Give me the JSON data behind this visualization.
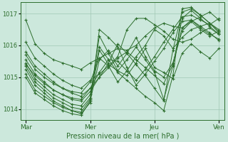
{
  "xlabel": "Pression niveau de la mer( hPa )",
  "bg_color": "#cce8dc",
  "grid_color": "#a0c8b4",
  "line_color": "#2d6e2d",
  "marker": "+",
  "xtick_labels": [
    "Mar",
    "Mer",
    "Jeu",
    "Ven"
  ],
  "xtick_positions": [
    0,
    48,
    96,
    144
  ],
  "yticks": [
    1014,
    1015,
    1016,
    1017
  ],
  "ylim": [
    1013.65,
    1017.35
  ],
  "xlim": [
    -4,
    148
  ],
  "series": [
    [
      1016.8,
      1016.05,
      1015.75,
      1015.55,
      1015.45,
      1015.35,
      1015.25,
      1015.45,
      1015.6,
      1015.75,
      1015.9,
      1015.85,
      1016.0,
      1016.3,
      1016.55,
      1016.7,
      1016.6,
      1016.55,
      1016.75,
      1016.9,
      1017.05,
      1016.8
    ],
    [
      1016.1,
      1015.6,
      1015.35,
      1015.1,
      1014.9,
      1014.75,
      1014.65,
      1014.9,
      1015.1,
      1015.35,
      1015.65,
      1016.5,
      1016.85,
      1016.85,
      1016.65,
      1016.45,
      1016.2,
      1016.1,
      1016.2,
      1016.4,
      1016.55,
      1016.35
    ],
    [
      1015.8,
      1015.35,
      1015.1,
      1014.85,
      1014.65,
      1014.5,
      1014.4,
      1014.65,
      1015.0,
      1015.3,
      1015.6,
      1015.8,
      1015.55,
      1015.3,
      1015.05,
      1014.8,
      1015.4,
      1016.55,
      1016.8,
      1016.55,
      1016.35,
      1016.2
    ],
    [
      1015.55,
      1015.1,
      1014.85,
      1014.6,
      1014.45,
      1014.3,
      1014.25,
      1014.55,
      1015.0,
      1015.45,
      1016.05,
      1015.75,
      1015.4,
      1015.05,
      1014.65,
      1014.25,
      1015.85,
      1017.05,
      1017.15,
      1016.95,
      1016.7,
      1016.5
    ],
    [
      1015.45,
      1014.95,
      1014.7,
      1014.45,
      1014.3,
      1014.15,
      1014.1,
      1014.45,
      1015.95,
      1015.55,
      1015.15,
      1014.9,
      1014.65,
      1014.4,
      1014.2,
      1013.95,
      1015.05,
      1017.15,
      1017.2,
      1016.95,
      1016.7,
      1016.4
    ],
    [
      1015.35,
      1014.85,
      1014.6,
      1014.35,
      1014.2,
      1014.05,
      1014.0,
      1014.35,
      1016.3,
      1015.75,
      1015.2,
      1015.55,
      1015.95,
      1015.55,
      1015.15,
      1014.3,
      1015.35,
      1016.85,
      1017.1,
      1016.85,
      1016.6,
      1016.35
    ],
    [
      1015.25,
      1014.75,
      1014.5,
      1014.25,
      1014.1,
      1013.95,
      1013.85,
      1014.2,
      1016.5,
      1016.25,
      1015.95,
      1015.3,
      1014.75,
      1015.1,
      1015.5,
      1015.9,
      1016.4,
      1016.75,
      1016.8,
      1016.6,
      1016.4,
      1016.15
    ],
    [
      1015.1,
      1014.6,
      1014.4,
      1014.2,
      1014.05,
      1013.95,
      1013.9,
      1014.3,
      1015.85,
      1015.4,
      1015.2,
      1015.05,
      1015.45,
      1015.9,
      1015.3,
      1015.15,
      1014.95,
      1015.75,
      1016.05,
      1015.8,
      1015.6,
      1015.9
    ],
    [
      1015.0,
      1014.5,
      1014.3,
      1014.1,
      1013.95,
      1013.85,
      1013.8,
      1014.25,
      1015.55,
      1015.85,
      1015.35,
      1015.75,
      1016.25,
      1015.65,
      1015.2,
      1015.0,
      1015.45,
      1016.45,
      1016.75,
      1016.5,
      1016.3,
      1016.45
    ],
    [
      1015.4,
      1015.05,
      1014.8,
      1014.6,
      1014.45,
      1014.35,
      1014.3,
      1014.65,
      1015.15,
      1015.55,
      1015.5,
      1015.2,
      1014.9,
      1015.25,
      1015.65,
      1016.1,
      1016.5,
      1016.9,
      1016.95,
      1016.8,
      1016.65,
      1016.85
    ],
    [
      1015.7,
      1015.25,
      1015.0,
      1014.8,
      1014.65,
      1014.55,
      1014.5,
      1014.85,
      1015.6,
      1015.35,
      1014.85,
      1015.2,
      1015.65,
      1016.0,
      1016.5,
      1016.3,
      1015.9,
      1016.25,
      1016.5,
      1016.6,
      1016.7,
      1016.45
    ]
  ],
  "lw": 0.7,
  "ms": 2.5
}
